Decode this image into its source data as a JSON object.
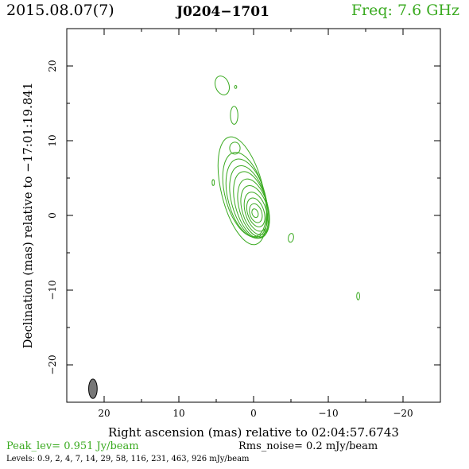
{
  "header": {
    "date": "2015.08.07(7)",
    "source": "J0204−1701",
    "freq": "Freq: 7.6 GHz"
  },
  "footer": {
    "peak": "Peak_lev=  0.951 Jy/beam",
    "rms": "Rms_noise=  0.2 mJy/beam",
    "levels": "Levels: 0.9,   2,   4,   7,  14,  29,  58, 116, 231, 463, 926 mJy/beam"
  },
  "colors": {
    "contour": "#3aaa20",
    "beam": "#777777"
  },
  "chart_data": {
    "type": "contour",
    "xlabel": "Right ascension (mas) relative to 02:04:57.6743",
    "ylabel": "Declination (mas) relative to −17:01:19.841",
    "xlim": [
      25,
      -25
    ],
    "ylim": [
      -25,
      25
    ],
    "xticks": [
      20,
      10,
      0,
      -10,
      -20
    ],
    "xtick_labels": [
      "20",
      "10",
      "0",
      "−10",
      "−20"
    ],
    "yticks": [
      20,
      10,
      0,
      -10,
      -20
    ],
    "ytick_labels": [
      "20",
      "10",
      "0",
      "−10",
      "−20"
    ],
    "levels_mJy": [
      0.9,
      2,
      4,
      7,
      14,
      29,
      58,
      116,
      231,
      463,
      926
    ],
    "peak_Jy_per_beam": 0.951,
    "rms_mJy_per_beam": 0.2,
    "beam": {
      "x": 21.5,
      "y": -23.2,
      "major_mas": 2.6,
      "minor_mas": 1.2,
      "pa_deg": 0
    },
    "core_contours": [
      {
        "cx": -0.2,
        "cy": 0.3,
        "rx": 0.4,
        "ry": 0.6,
        "rot": -20
      },
      {
        "cx": -0.3,
        "cy": 0.3,
        "rx": 0.8,
        "ry": 1.3,
        "rot": -18
      },
      {
        "cx": -0.3,
        "cy": 0.4,
        "rx": 1.1,
        "ry": 2.0,
        "rot": -18
      },
      {
        "cx": -0.3,
        "cy": 0.5,
        "rx": 1.4,
        "ry": 2.7,
        "rot": -17
      },
      {
        "cx": -0.2,
        "cy": 0.7,
        "rx": 1.7,
        "ry": 3.4,
        "rot": -17
      },
      {
        "cx": 0.0,
        "cy": 1.0,
        "rx": 1.9,
        "ry": 4.0,
        "rot": -16
      },
      {
        "cx": 0.3,
        "cy": 1.4,
        "rx": 2.1,
        "ry": 4.6,
        "rot": -16
      },
      {
        "cx": 0.6,
        "cy": 1.8,
        "rx": 2.3,
        "ry": 5.0,
        "rot": -16
      },
      {
        "cx": 0.9,
        "cy": 2.3,
        "rx": 2.5,
        "ry": 5.4,
        "rot": -15
      },
      {
        "cx": 1.2,
        "cy": 2.8,
        "rx": 2.6,
        "ry": 5.8,
        "rot": -15
      },
      {
        "cx": 1.5,
        "cy": 3.3,
        "rx": 2.8,
        "ry": 7.4,
        "rot": -14
      }
    ],
    "components": [
      {
        "cx": 2.5,
        "cy": 9.0,
        "rx": 0.7,
        "ry": 0.8,
        "rot": 0
      },
      {
        "cx": 2.6,
        "cy": 13.4,
        "rx": 0.5,
        "ry": 1.2,
        "rot": 0
      },
      {
        "cx": 4.2,
        "cy": 17.4,
        "rx": 0.9,
        "ry": 1.3,
        "rot": -20
      },
      {
        "cx": 2.4,
        "cy": 17.2,
        "rx": 0.15,
        "ry": 0.2,
        "rot": 0
      },
      {
        "cx": 5.4,
        "cy": 4.4,
        "rx": 0.15,
        "ry": 0.4,
        "rot": 0
      },
      {
        "cx": -5.0,
        "cy": -3.0,
        "rx": 0.35,
        "ry": 0.6,
        "rot": 10
      },
      {
        "cx": -14.0,
        "cy": -10.8,
        "rx": 0.2,
        "ry": 0.5,
        "rot": 0
      }
    ]
  }
}
